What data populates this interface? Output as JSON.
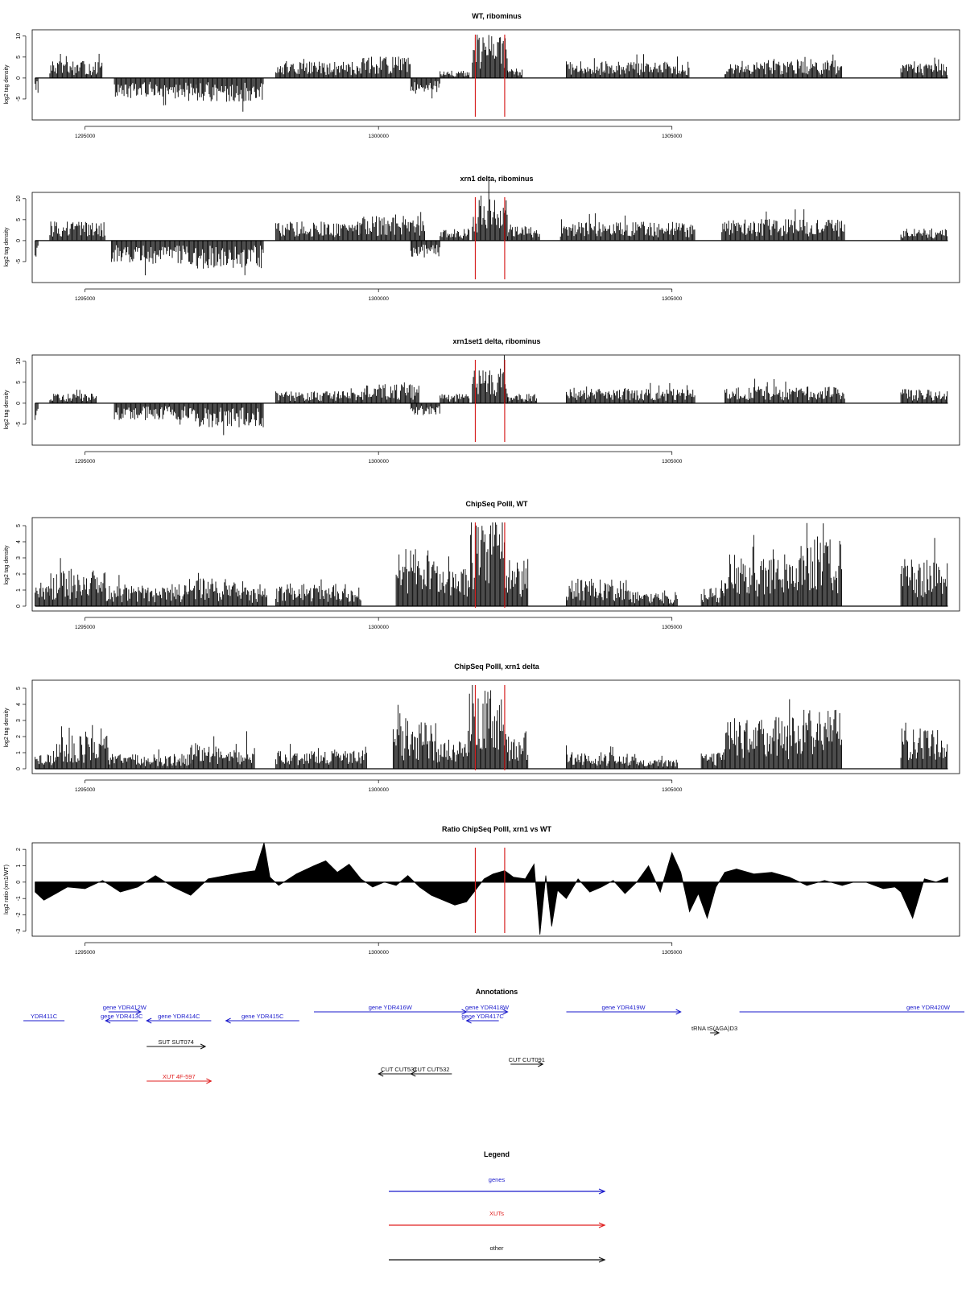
{
  "chart_data": [
    {
      "type": "bar",
      "title": "WT, ribominus",
      "ylabel": "log2 tag density",
      "xlim": [
        1294100,
        1309900
      ],
      "ylim": [
        -10,
        11.5
      ],
      "yticks": [
        -5,
        0,
        5,
        10
      ],
      "xticks": [
        1295000,
        1300000,
        1305000
      ],
      "x_tick_labels": [
        "1295000",
        "1300000",
        "1305000"
      ],
      "y_tick_labels": [
        "-5",
        "0",
        "5",
        "10"
      ],
      "highlight_lines_x": [
        1301650,
        1302150
      ],
      "highlight_color": "#d62020",
      "segments": [
        {
          "from": 1294150,
          "to": 1294200,
          "level": -3.2
        },
        {
          "from": 1294400,
          "to": 1295300,
          "level": 3.5
        },
        {
          "from": 1295500,
          "to": 1296900,
          "level": -4.0
        },
        {
          "from": 1296900,
          "to": 1298050,
          "level": -5.0
        },
        {
          "from": 1298250,
          "to": 1299700,
          "level": 3.5
        },
        {
          "from": 1299700,
          "to": 1300550,
          "level": 4.5
        },
        {
          "from": 1300550,
          "to": 1301050,
          "level": -3.0
        },
        {
          "from": 1301050,
          "to": 1301550,
          "level": 1.5
        },
        {
          "from": 1301600,
          "to": 1302200,
          "level": 9.0
        },
        {
          "from": 1302200,
          "to": 1302450,
          "level": 2.0
        },
        {
          "from": 1303200,
          "to": 1305300,
          "level": 3.5
        },
        {
          "from": 1305900,
          "to": 1307900,
          "level": 4.0
        },
        {
          "from": 1308900,
          "to": 1309700,
          "level": 3.0
        }
      ]
    },
    {
      "type": "bar",
      "title": "xrn1 delta, ribominus",
      "ylabel": "log2 tag density",
      "xlim": [
        1294100,
        1309900
      ],
      "ylim": [
        -10,
        11.5
      ],
      "yticks": [
        -5,
        0,
        5,
        10
      ],
      "xticks": [
        1295000,
        1300000,
        1305000
      ],
      "x_tick_labels": [
        "1295000",
        "1300000",
        "1305000"
      ],
      "y_tick_labels": [
        "-5",
        "0",
        "5",
        "10"
      ],
      "highlight_lines_x": [
        1301650,
        1302150
      ],
      "highlight_color": "#d62020",
      "segments": [
        {
          "from": 1294150,
          "to": 1294200,
          "level": -4.5
        },
        {
          "from": 1294400,
          "to": 1295350,
          "level": 4.0
        },
        {
          "from": 1295450,
          "to": 1296900,
          "level": -5.0
        },
        {
          "from": 1296900,
          "to": 1298050,
          "level": -6.0
        },
        {
          "from": 1298250,
          "to": 1299700,
          "level": 4.0
        },
        {
          "from": 1299700,
          "to": 1300800,
          "level": 5.5
        },
        {
          "from": 1300550,
          "to": 1301050,
          "level": -3.5
        },
        {
          "from": 1301050,
          "to": 1301550,
          "level": 2.5
        },
        {
          "from": 1301600,
          "to": 1302200,
          "level": 9.5
        },
        {
          "from": 1302200,
          "to": 1302750,
          "level": 3.0
        },
        {
          "from": 1303100,
          "to": 1305400,
          "level": 4.0
        },
        {
          "from": 1305850,
          "to": 1307950,
          "level": 4.5
        },
        {
          "from": 1308900,
          "to": 1309700,
          "level": 2.5
        }
      ]
    },
    {
      "type": "bar",
      "title": "xrn1set1 delta, ribominus",
      "ylabel": "log2 tag density",
      "xlim": [
        1294100,
        1309900
      ],
      "ylim": [
        -10,
        11.5
      ],
      "yticks": [
        -5,
        0,
        5,
        10
      ],
      "xticks": [
        1295000,
        1300000,
        1305000
      ],
      "x_tick_labels": [
        "1295000",
        "1300000",
        "1305000"
      ],
      "y_tick_labels": [
        "-5",
        "0",
        "5",
        "10"
      ],
      "highlight_lines_x": [
        1301650,
        1302150
      ],
      "highlight_color": "#d62020",
      "segments": [
        {
          "from": 1294150,
          "to": 1294200,
          "level": -3.5
        },
        {
          "from": 1294400,
          "to": 1295200,
          "level": 2.0
        },
        {
          "from": 1295500,
          "to": 1296900,
          "level": -3.5
        },
        {
          "from": 1296900,
          "to": 1298050,
          "level": -5.0
        },
        {
          "from": 1298250,
          "to": 1299700,
          "level": 2.5
        },
        {
          "from": 1299700,
          "to": 1300700,
          "level": 4.0
        },
        {
          "from": 1300550,
          "to": 1301050,
          "level": -2.5
        },
        {
          "from": 1301050,
          "to": 1301550,
          "level": 2.0
        },
        {
          "from": 1301600,
          "to": 1302200,
          "level": 7.5
        },
        {
          "from": 1302200,
          "to": 1302700,
          "level": 2.0
        },
        {
          "from": 1303200,
          "to": 1305400,
          "level": 3.0
        },
        {
          "from": 1305900,
          "to": 1307950,
          "level": 3.5
        },
        {
          "from": 1308900,
          "to": 1309700,
          "level": 3.0
        }
      ]
    },
    {
      "type": "bar",
      "title": "ChipSeq PolII, WT",
      "ylabel": "log2 tag density",
      "xlim": [
        1294100,
        1309900
      ],
      "ylim": [
        -0.3,
        5.5
      ],
      "yticks": [
        0,
        1,
        2,
        3,
        4,
        5
      ],
      "xticks": [
        1295000,
        1300000,
        1305000
      ],
      "x_tick_labels": [
        "1295000",
        "1300000",
        "1305000"
      ],
      "y_tick_labels": [
        "0",
        "1",
        "2",
        "3",
        "4",
        "5"
      ],
      "highlight_lines_x": [
        1301650,
        1302150
      ],
      "highlight_color": "#d62020",
      "segments": [
        {
          "from": 1294150,
          "to": 1294400,
          "level": 1.5
        },
        {
          "from": 1294400,
          "to": 1295350,
          "level": 2.0
        },
        {
          "from": 1295350,
          "to": 1296700,
          "level": 1.2
        },
        {
          "from": 1296700,
          "to": 1297800,
          "level": 1.5
        },
        {
          "from": 1297800,
          "to": 1298100,
          "level": 1.0
        },
        {
          "from": 1298250,
          "to": 1299700,
          "level": 1.2
        },
        {
          "from": 1300300,
          "to": 1301000,
          "level": 3.2
        },
        {
          "from": 1301000,
          "to": 1301550,
          "level": 2.0
        },
        {
          "from": 1301550,
          "to": 1302150,
          "level": 4.8
        },
        {
          "from": 1302150,
          "to": 1302550,
          "level": 2.6
        },
        {
          "from": 1303200,
          "to": 1304300,
          "level": 1.5
        },
        {
          "from": 1304300,
          "to": 1305100,
          "level": 0.8
        },
        {
          "from": 1305500,
          "to": 1305900,
          "level": 1.0
        },
        {
          "from": 1305900,
          "to": 1307200,
          "level": 2.8
        },
        {
          "from": 1307200,
          "to": 1307900,
          "level": 3.6
        },
        {
          "from": 1308900,
          "to": 1309700,
          "level": 2.6
        }
      ]
    },
    {
      "type": "bar",
      "title": "ChipSeq PolII, xrn1 delta",
      "ylabel": "log2 tag density",
      "xlim": [
        1294100,
        1309900
      ],
      "ylim": [
        -0.3,
        5.5
      ],
      "yticks": [
        0,
        1,
        2,
        3,
        4,
        5
      ],
      "xticks": [
        1295000,
        1300000,
        1305000
      ],
      "x_tick_labels": [
        "1295000",
        "1300000",
        "1305000"
      ],
      "y_tick_labels": [
        "0",
        "1",
        "2",
        "3",
        "4",
        "5"
      ],
      "highlight_lines_x": [
        1301650,
        1302150
      ],
      "highlight_color": "#d62020",
      "segments": [
        {
          "from": 1294150,
          "to": 1294500,
          "level": 0.8
        },
        {
          "from": 1294500,
          "to": 1295400,
          "level": 1.8
        },
        {
          "from": 1295400,
          "to": 1296800,
          "level": 0.8
        },
        {
          "from": 1296800,
          "to": 1297900,
          "level": 1.4
        },
        {
          "from": 1298250,
          "to": 1299800,
          "level": 1.0
        },
        {
          "from": 1300250,
          "to": 1301000,
          "level": 2.6
        },
        {
          "from": 1301000,
          "to": 1301550,
          "level": 1.6
        },
        {
          "from": 1301550,
          "to": 1302150,
          "level": 4.4
        },
        {
          "from": 1302150,
          "to": 1302550,
          "level": 2.2
        },
        {
          "from": 1303200,
          "to": 1304400,
          "level": 0.9
        },
        {
          "from": 1304400,
          "to": 1305100,
          "level": 0.5
        },
        {
          "from": 1305500,
          "to": 1305900,
          "level": 0.9
        },
        {
          "from": 1305900,
          "to": 1307200,
          "level": 2.8
        },
        {
          "from": 1307200,
          "to": 1307900,
          "level": 3.2
        },
        {
          "from": 1308900,
          "to": 1309700,
          "level": 2.2
        }
      ]
    },
    {
      "type": "area",
      "title": "Ratio ChipSeq PolII, xrn1 vs WT",
      "ylabel": "log2 ratio (xrn1/WT)",
      "xlim": [
        1294100,
        1309900
      ],
      "ylim": [
        -3.3,
        2.4
      ],
      "yticks": [
        -3,
        -2,
        -1,
        0,
        1,
        2
      ],
      "xticks": [
        1295000,
        1300000,
        1305000
      ],
      "x_tick_labels": [
        "1295000",
        "1300000",
        "1305000"
      ],
      "y_tick_labels": [
        "-3",
        "-2",
        "-1",
        "0",
        "1",
        "2"
      ],
      "highlight_lines_x": [
        1301650,
        1302150
      ],
      "highlight_color": "#d62020",
      "x": [
        1294150,
        1294300,
        1294500,
        1294700,
        1295000,
        1295300,
        1295600,
        1295900,
        1296200,
        1296500,
        1296800,
        1297100,
        1297400,
        1297700,
        1297900,
        1298050,
        1298150,
        1298300,
        1298600,
        1298900,
        1299100,
        1299300,
        1299500,
        1299700,
        1299900,
        1300100,
        1300300,
        1300500,
        1300700,
        1300900,
        1301100,
        1301300,
        1301500,
        1301650,
        1301800,
        1301950,
        1302150,
        1302300,
        1302500,
        1302650,
        1302750,
        1302850,
        1302950,
        1303050,
        1303200,
        1303400,
        1303600,
        1303800,
        1304000,
        1304200,
        1304400,
        1304600,
        1304800,
        1305000,
        1305150,
        1305300,
        1305450,
        1305600,
        1305750,
        1305900,
        1306100,
        1306400,
        1306700,
        1307000,
        1307300,
        1307600,
        1307900,
        1308100,
        1308300,
        1308600,
        1308800,
        1308900,
        1309100,
        1309300,
        1309500,
        1309700
      ],
      "values": [
        -0.6,
        -1.1,
        -0.7,
        -0.3,
        -0.4,
        0.1,
        -0.6,
        -0.3,
        0.4,
        -0.3,
        -0.8,
        0.2,
        0.4,
        0.6,
        0.7,
        2.4,
        0.3,
        -0.2,
        0.5,
        1.0,
        1.3,
        0.6,
        1.1,
        0.2,
        -0.3,
        0.0,
        -0.2,
        0.4,
        -0.3,
        -0.8,
        -1.1,
        -1.4,
        -1.2,
        -0.5,
        0.2,
        0.5,
        0.7,
        0.3,
        0.2,
        1.1,
        -3.2,
        0.4,
        -2.7,
        -0.5,
        -1.0,
        0.2,
        -0.6,
        -0.3,
        0.1,
        -0.7,
        0.0,
        1.0,
        -0.6,
        1.8,
        0.6,
        -1.8,
        -0.7,
        -2.2,
        -0.3,
        0.6,
        0.8,
        0.5,
        0.6,
        0.3,
        -0.2,
        0.1,
        -0.2,
        0.0,
        0.0,
        -0.4,
        -0.3,
        -0.6,
        -2.2,
        0.2,
        0.0,
        0.3
      ]
    }
  ],
  "annotations": {
    "title": "Annotations",
    "xlim": [
      1294100,
      1309900
    ],
    "items": [
      {
        "label": "YDR411C",
        "from": 1293950,
        "to": 1294650,
        "dir": "none",
        "color": "#1a1acc",
        "row": 1
      },
      {
        "label": "gene YDR412W",
        "from": 1295400,
        "to": 1295950,
        "dir": "right",
        "color": "#1a1acc",
        "row": 0
      },
      {
        "label": "gene YDR413C",
        "from": 1295350,
        "to": 1295900,
        "dir": "left",
        "color": "#1a1acc",
        "row": 1
      },
      {
        "label": "gene YDR414C",
        "from": 1296050,
        "to": 1297150,
        "dir": "left",
        "color": "#1a1acc",
        "row": 1
      },
      {
        "label": "gene YDR415C",
        "from": 1297400,
        "to": 1298650,
        "dir": "left",
        "color": "#1a1acc",
        "row": 1
      },
      {
        "label": "gene YDR416W",
        "from": 1298900,
        "to": 1301500,
        "dir": "right",
        "color": "#1a1acc",
        "row": 0
      },
      {
        "label": "gene YDR418W",
        "from": 1301500,
        "to": 1302200,
        "dir": "right",
        "color": "#1a1acc",
        "row": 0
      },
      {
        "label": "gene YDR417C",
        "from": 1301500,
        "to": 1302050,
        "dir": "left",
        "color": "#1a1acc",
        "row": 1
      },
      {
        "label": "gene YDR419W",
        "from": 1303200,
        "to": 1305150,
        "dir": "right",
        "color": "#1a1acc",
        "row": 0
      },
      {
        "label": "gene YDR420W",
        "from": 1306150,
        "to": 1310500,
        "dir": "none",
        "color": "#1a1acc",
        "row": 0
      },
      {
        "label": "tRNA tS(AGA)D3",
        "from": 1305650,
        "to": 1305800,
        "dir": "right",
        "color": "#111111",
        "row": 2
      },
      {
        "label": "SUT SUT074",
        "from": 1296050,
        "to": 1297050,
        "dir": "right",
        "color": "#111111",
        "row": 3
      },
      {
        "label": "CUT CUT091",
        "from": 1302250,
        "to": 1302800,
        "dir": "right",
        "color": "#111111",
        "row": 4
      },
      {
        "label": "CUT CUT531",
        "from": 1300000,
        "to": 1300700,
        "dir": "left",
        "color": "#111111",
        "row": 5
      },
      {
        "label": "CUT CUT532",
        "from": 1300550,
        "to": 1301250,
        "dir": "left",
        "color": "#111111",
        "row": 5
      },
      {
        "label": "XUT 4F-597",
        "from": 1296050,
        "to": 1297150,
        "dir": "right",
        "color": "#e02020",
        "row": 6
      }
    ]
  },
  "legend": {
    "title": "Legend",
    "items": [
      {
        "label": "genes",
        "color": "#1a1acc"
      },
      {
        "label": "XUTs",
        "color": "#e02020"
      },
      {
        "label": "other",
        "color": "#111111"
      }
    ]
  }
}
